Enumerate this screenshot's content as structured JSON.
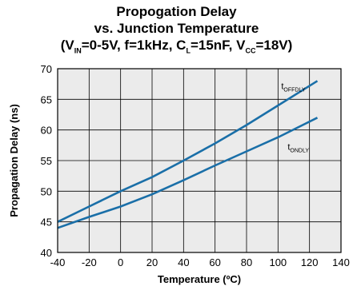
{
  "chart_data": {
    "type": "line",
    "title": "Propogation Delay",
    "subtitle": "vs. Junction Temperature",
    "conditions": {
      "open": "(V",
      "vin_sub": "IN",
      "vin_value": "=0-5V, f=1kHz, C",
      "cl_sub": "L",
      "cl_value": "=15nF, V",
      "vcc_sub": "CC",
      "vcc_value": "=18V)"
    },
    "xlabel": "Temperature (ºC)",
    "ylabel": "Propagation Delay (ns)",
    "xlim": [
      -40,
      140
    ],
    "ylim": [
      40,
      70
    ],
    "xticks": [
      -40,
      -20,
      0,
      20,
      40,
      60,
      80,
      100,
      120,
      140
    ],
    "yticks": [
      40,
      45,
      50,
      55,
      60,
      65,
      70
    ],
    "grid": true,
    "series": [
      {
        "name_main": "t",
        "name_sub": "OFFDLY",
        "color": "#1a6fa8",
        "x": [
          -40,
          -20,
          0,
          20,
          40,
          60,
          80,
          100,
          125
        ],
        "y": [
          45,
          47.5,
          50,
          52.3,
          55,
          57.8,
          60.8,
          64,
          68
        ]
      },
      {
        "name_main": "t",
        "name_sub": "ONDLY",
        "color": "#1a6fa8",
        "x": [
          -40,
          -20,
          0,
          20,
          40,
          60,
          80,
          100,
          125
        ],
        "y": [
          44,
          45.8,
          47.5,
          49.5,
          51.8,
          54.2,
          56.5,
          58.8,
          62
        ]
      }
    ],
    "plot_background": "#ebebeb"
  }
}
